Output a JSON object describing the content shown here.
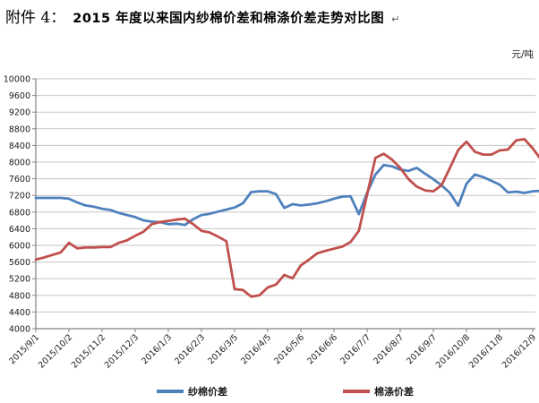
{
  "title": {
    "prefix": "附件 4：",
    "text": "2015 年度以来国内纱棉价差和棉涤价差走势对比图",
    "mark": "↵"
  },
  "chart_data": {
    "type": "line",
    "unit_label": "元/吨",
    "grid": true,
    "legend_position": "bottom",
    "y_axis": {
      "min": 4000,
      "max": 10000,
      "step": 400
    },
    "x_tick_labels": [
      "2015/9/1",
      "2015/10/2",
      "2015/11/2",
      "2015/12/3",
      "2016/1/3",
      "2016/2/3",
      "2016/3/5",
      "2016/4/5",
      "2016/5/6",
      "2016/6/6",
      "2016/7/7",
      "2016/8/7",
      "2016/9/7",
      "2016/10/8",
      "2016/11/8",
      "2016/12/9"
    ],
    "samples_per_tick_interval": 4,
    "series": [
      {
        "name": "纱棉价差",
        "color": "#4F81BD",
        "values": [
          7140,
          7140,
          7140,
          7140,
          7120,
          7030,
          6960,
          6930,
          6880,
          6850,
          6780,
          6730,
          6680,
          6600,
          6570,
          6560,
          6510,
          6520,
          6490,
          6630,
          6730,
          6760,
          6810,
          6860,
          6910,
          7010,
          7280,
          7300,
          7300,
          7230,
          6900,
          6990,
          6960,
          6980,
          7010,
          7060,
          7120,
          7170,
          7180,
          6750,
          7260,
          7700,
          7930,
          7900,
          7820,
          7790,
          7860,
          7720,
          7590,
          7440,
          7260,
          6950,
          7480,
          7700,
          7640,
          7550,
          7460,
          7270,
          7290,
          7260,
          7300,
          7310
        ]
      },
      {
        "name": "棉涤价差",
        "color": "#C0504D",
        "values": [
          5660,
          5710,
          5770,
          5830,
          6060,
          5930,
          5950,
          5950,
          5960,
          5960,
          6060,
          6120,
          6230,
          6330,
          6510,
          6560,
          6590,
          6620,
          6640,
          6510,
          6350,
          6310,
          6210,
          6100,
          4950,
          4930,
          4770,
          4800,
          4990,
          5060,
          5290,
          5210,
          5520,
          5660,
          5810,
          5870,
          5920,
          5970,
          6080,
          6350,
          7220,
          8100,
          8200,
          8060,
          7860,
          7590,
          7410,
          7320,
          7300,
          7450,
          7860,
          8290,
          8490,
          8250,
          8180,
          8180,
          8280,
          8300,
          8520,
          8550,
          8330,
          8060
        ]
      }
    ],
    "style": {
      "gridline_color": "#c6c6c6",
      "axis_color": "#808080",
      "tick_label_color": "#1a1a1a",
      "line_width": 2.8
    }
  }
}
